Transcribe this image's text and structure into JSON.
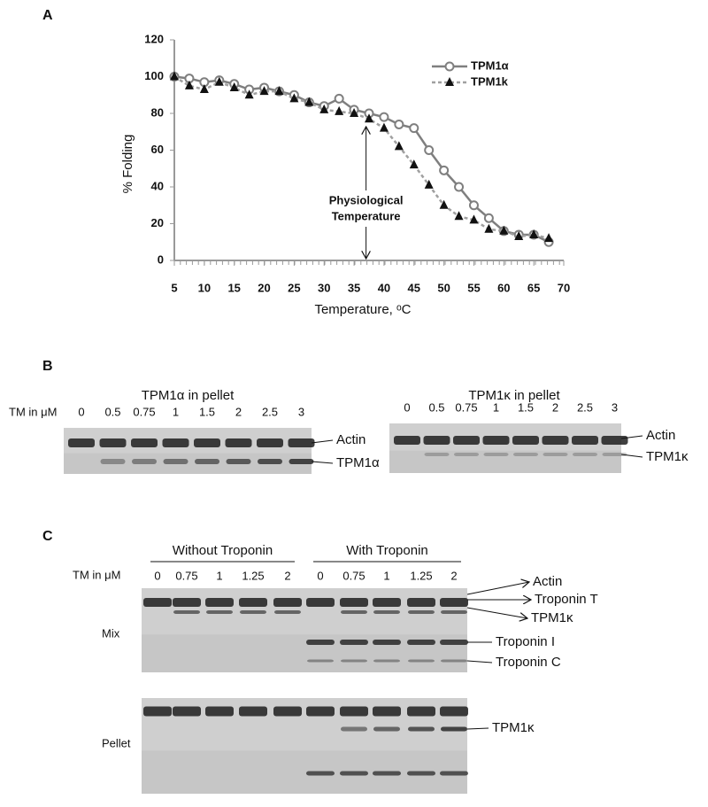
{
  "chart_data": {
    "type": "line",
    "panel": "A",
    "xlabel": "Temperature, ᵒC",
    "ylabel": "% Folding",
    "annotation": [
      "Physiological",
      "Temperature"
    ],
    "annotation_x": 37,
    "x": [
      5,
      7.5,
      10,
      12.5,
      15,
      17.5,
      20,
      22.5,
      25,
      27.5,
      30,
      32.5,
      35,
      37.5,
      40,
      42.5,
      45,
      47.5,
      50,
      52.5,
      55,
      57.5,
      60,
      62.5,
      65,
      67.5
    ],
    "series": [
      {
        "name": "TPM1α",
        "color": "#7f7f7f",
        "marker": "circle",
        "dash": false,
        "values": [
          100,
          99,
          97,
          98,
          96,
          93,
          94,
          92,
          90,
          86,
          84,
          88,
          82,
          80,
          78,
          74,
          72,
          60,
          49,
          40,
          30,
          23,
          16,
          14,
          14,
          10
        ]
      },
      {
        "name": "TPM1k",
        "color": "#a0a0a0",
        "marker": "triangle",
        "dash": true,
        "values": [
          100,
          95,
          93,
          97,
          94,
          90,
          92,
          92,
          88,
          86,
          82,
          81,
          80,
          77,
          72,
          62,
          52,
          41,
          30,
          24,
          22,
          17,
          16,
          13,
          14,
          12
        ]
      }
    ],
    "xlim": [
      5,
      70
    ],
    "xticks": [
      5,
      10,
      15,
      20,
      25,
      30,
      35,
      40,
      45,
      50,
      55,
      60,
      65,
      70
    ],
    "ylim": [
      0,
      120
    ],
    "yticks": [
      0,
      20,
      40,
      60,
      80,
      100,
      120
    ],
    "legend_position": "upper right",
    "grid": false
  },
  "panel_b": {
    "label": "B",
    "tm_label": "TM in μM",
    "gels": [
      {
        "title": "TPM1α in pellet",
        "lanes": [
          "0",
          "0.5",
          "0.75",
          "1",
          "1.5",
          "2",
          "2.5",
          "3"
        ],
        "bands": [
          "Actin",
          "TPM1α"
        ]
      },
      {
        "title": "TPM1κ in pellet",
        "lanes": [
          "0",
          "0.5",
          "0.75",
          "1",
          "1.5",
          "2",
          "2.5",
          "3"
        ],
        "bands": [
          "Actin",
          "TPM1κ"
        ]
      }
    ]
  },
  "panel_c": {
    "label": "C",
    "tm_label": "TM in μM",
    "groups": [
      {
        "name": "Without Troponin",
        "lanes": [
          "0",
          "0.75",
          "1",
          "1.25",
          "2"
        ]
      },
      {
        "name": "With Troponin",
        "lanes": [
          "0",
          "0.75",
          "1",
          "1.25",
          "2"
        ]
      }
    ],
    "rows": [
      "Mix",
      "Pellet"
    ],
    "mix_bands": [
      "Actin",
      "Troponin T",
      "TPM1κ",
      "Troponin I",
      "Troponin C"
    ],
    "pellet_bands": [
      "TPM1κ"
    ]
  }
}
